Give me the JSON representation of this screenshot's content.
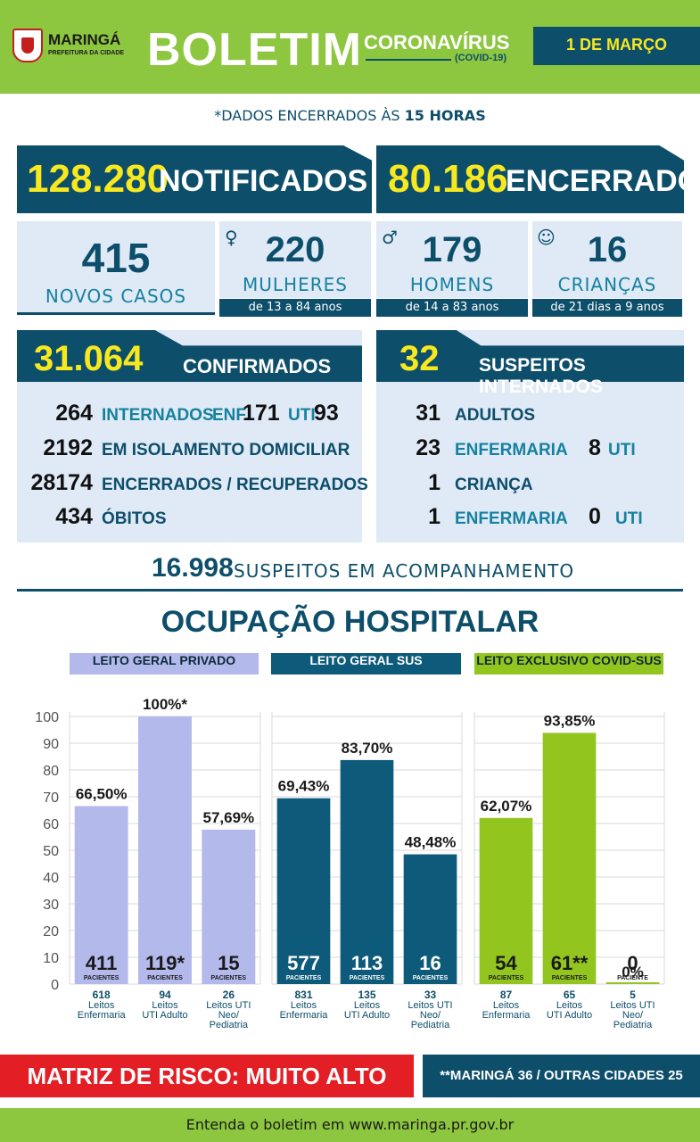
{
  "header": {
    "city": "MARINGÁ",
    "city_sub": "PREFEITURA DA CIDADE",
    "title": "BOLETIM",
    "topic": "CORONAVÍRUS",
    "topic_sub": "(COVID-19)",
    "date": "1 DE MARÇO"
  },
  "note": {
    "prefix": "*DADOS ENCERRADOS ÀS",
    "hour": "15 HORAS"
  },
  "totals": {
    "notificados_num": "128.280",
    "notificados_label": "NOTIFICADOS",
    "encerrados_num": "80.186",
    "encerrados_label": "ENCERRADOS"
  },
  "new_cases": {
    "num": "415",
    "label": "NOVOS CASOS",
    "women_num": "220",
    "women_label": "MULHERES",
    "women_age": "de 13 a 84 anos",
    "men_num": "179",
    "men_label": "HOMENS",
    "men_age": "de 14 a 83 anos",
    "kids_num": "16",
    "kids_label": "CRIANÇAS",
    "kids_age": "de 21 dias a 9 anos"
  },
  "confirmed": {
    "num": "31.064",
    "label": "CONFIRMADOS",
    "internados_num": "264",
    "internados_label": "INTERNADOS",
    "enf_label": "ENF.",
    "enf_num": "171",
    "uti_label": "UTI",
    "uti_num": "93",
    "isolamento_num": "2192",
    "isolamento_label": "EM ISOLAMENTO DOMICILIAR",
    "recuperados_num": "28174",
    "recuperados_label": "ENCERRADOS / RECUPERADOS",
    "obitos_num": "434",
    "obitos_label": "ÓBITOS"
  },
  "suspects_internados": {
    "num": "32",
    "label": "SUSPEITOS INTERNADOS",
    "adultos_num": "31",
    "adultos_label": "ADULTOS",
    "adult_enf_num": "23",
    "adult_enf_label": "ENFERMARIA",
    "adult_uti_num": "8",
    "adult_uti_label": "UTI",
    "crianca_num": "1",
    "crianca_label": "CRIANÇA",
    "kid_enf_num": "1",
    "kid_enf_label": "ENFERMARIA",
    "kid_uti_num": "0",
    "kid_uti_label": "UTI"
  },
  "acompanhamento": {
    "num": "16.998",
    "label": "SUSPEITOS EM ACOMPANHAMENTO"
  },
  "occupation_title": "OCUPAÇÃO HOSPITALAR",
  "colors": {
    "navy": "#0d4e6b",
    "lavender": "#b4b9ec",
    "green": "#8dc63f",
    "yellow": "#f7e81f",
    "red": "#e31e24"
  },
  "chart_data": {
    "type": "bar",
    "ylim": [
      0,
      100
    ],
    "yticks": [
      0,
      10,
      20,
      30,
      40,
      50,
      60,
      70,
      80,
      90,
      100
    ],
    "groups": [
      {
        "name": "LEITO GERAL PRIVADO",
        "color": "#b4b9ec",
        "bars": [
          {
            "category": [
              "618",
              "Leitos",
              "Enfermaria"
            ],
            "value": 66.5,
            "label": "66,50%",
            "patients": "411",
            "patients_label": "PACIENTES"
          },
          {
            "category": [
              "94",
              "Leitos",
              "UTI Adulto"
            ],
            "value": 100,
            "label": "100%*",
            "patients": "119*",
            "patients_label": "PACIENTES"
          },
          {
            "category": [
              "26",
              "Leitos UTI",
              "Neo/",
              "Pediatria"
            ],
            "value": 57.69,
            "label": "57,69%",
            "patients": "15",
            "patients_label": "PACIENTES"
          }
        ]
      },
      {
        "name": "LEITO GERAL SUS",
        "color": "#0d5a7a",
        "bars": [
          {
            "category": [
              "831",
              "Leitos",
              "Enfermaria"
            ],
            "value": 69.43,
            "label": "69,43%",
            "patients": "577",
            "patients_label": "PACIENTES"
          },
          {
            "category": [
              "135",
              "Leitos",
              "UTI Adulto"
            ],
            "value": 83.7,
            "label": "83,70%",
            "patients": "113",
            "patients_label": "PACIENTES"
          },
          {
            "category": [
              "33",
              "Leitos UTI",
              "Neo/",
              "Pediatria"
            ],
            "value": 48.48,
            "label": "48,48%",
            "patients": "16",
            "patients_label": "PACIENTES"
          }
        ]
      },
      {
        "name": "LEITO EXCLUSIVO COVID-SUS",
        "color": "#93c51f",
        "bars": [
          {
            "category": [
              "87",
              "Leitos",
              "Enfermaria"
            ],
            "value": 62.07,
            "label": "62,07%",
            "patients": "54",
            "patients_label": "PACIENTES"
          },
          {
            "category": [
              "65",
              "Leitos",
              "UTI Adulto"
            ],
            "value": 93.85,
            "label": "93,85%",
            "patients": "61**",
            "patients_label": "PACIENTES"
          },
          {
            "category": [
              "5",
              "Leitos UTI",
              "Neo/",
              "Pediatria"
            ],
            "value": 0,
            "label": "0%",
            "patients": "0",
            "patients_label": "PACIENTE"
          }
        ]
      }
    ]
  },
  "risk": "MATRIZ DE RISCO: MUITO ALTO",
  "risk_note": "**MARINGÁ 36 / OUTRAS CIDADES 25",
  "footer": "Entenda o boletim em www.maringa.pr.gov.br"
}
